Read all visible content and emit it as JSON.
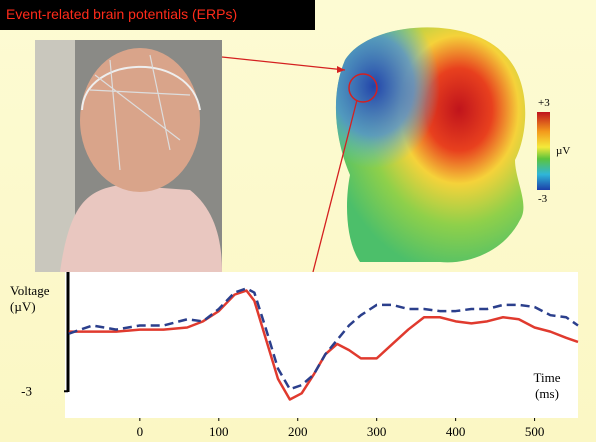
{
  "title": "Event-related brain potentials (ERPs)",
  "colorbar": {
    "max_label": "+3",
    "unit": "µV",
    "min_label": "-3"
  },
  "chart_data": {
    "type": "line",
    "y_label": "Voltage (µV)",
    "x_label": "Time (ms)",
    "x": [
      -90,
      -60,
      -30,
      0,
      30,
      60,
      80,
      100,
      120,
      135,
      145,
      160,
      175,
      190,
      205,
      220,
      235,
      250,
      265,
      280,
      300,
      320,
      340,
      360,
      380,
      400,
      420,
      440,
      460,
      480,
      500,
      520,
      540,
      555
    ],
    "series": [
      {
        "color": "#e03a2e",
        "dash": false,
        "values": [
          -0.1,
          -0.1,
          -0.1,
          0,
          0,
          0.1,
          0.4,
          0.9,
          1.7,
          1.9,
          1.4,
          -0.5,
          -2.4,
          -3.4,
          -3.1,
          -2.2,
          -1.2,
          -0.7,
          -1.0,
          -1.4,
          -1.4,
          -0.7,
          0,
          0.6,
          0.6,
          0.4,
          0.3,
          0.4,
          0.6,
          0.5,
          0.1,
          -0.1,
          -0.4,
          -0.6
        ]
      },
      {
        "color": "#2b3f8c",
        "dash": true,
        "values": [
          -0.2,
          0.2,
          0,
          0.2,
          0.2,
          0.5,
          0.4,
          1.0,
          1.8,
          2.0,
          1.8,
          0,
          -1.9,
          -2.9,
          -2.7,
          -2.2,
          -1.2,
          -0.5,
          0.2,
          0.7,
          1.2,
          1.2,
          1.0,
          1.0,
          0.9,
          0.9,
          1.0,
          1.0,
          1.2,
          1.2,
          1.1,
          0.7,
          0.6,
          0.2
        ]
      }
    ],
    "xlim": [
      -91,
      555
    ],
    "xticks": [
      0,
      100,
      200,
      300,
      400,
      500
    ],
    "ylim": [
      -4.3,
      2.8
    ],
    "yticks": [
      -3
    ]
  }
}
